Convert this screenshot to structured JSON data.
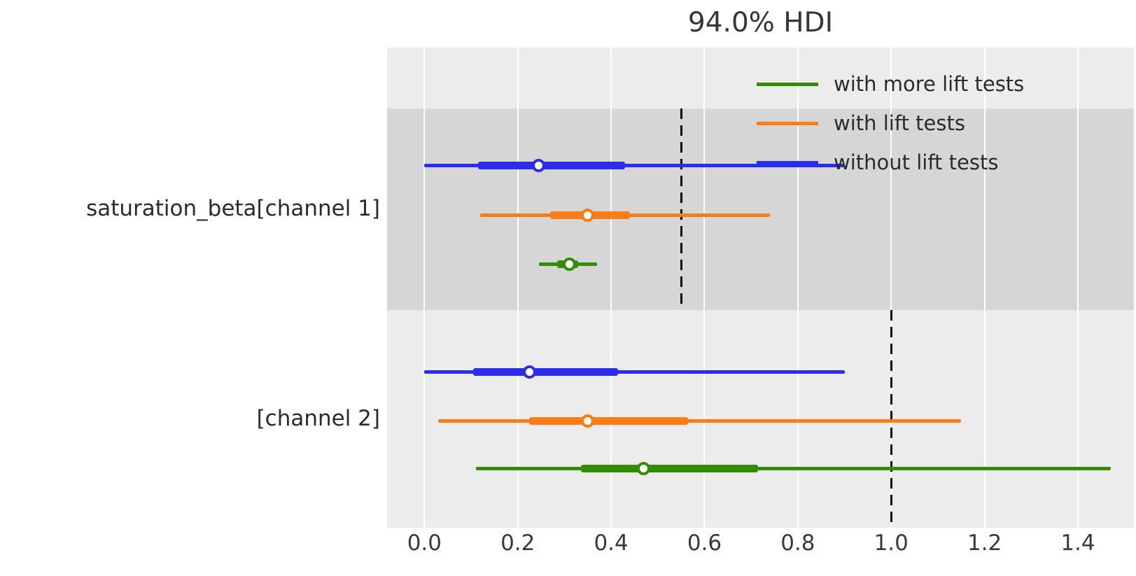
{
  "title": "94.0% HDI",
  "legend": [
    {
      "label": "with more lift tests",
      "color": "#328c06"
    },
    {
      "label": "with lift tests",
      "color": "#fa7c17"
    },
    {
      "label": "without lift tests",
      "color": "#2a2eec"
    }
  ],
  "colors": {
    "axes_background": "#ececec",
    "group_band": "#d6d6d6",
    "gridline": "#ffffff",
    "reference_line": "#0a0a0a",
    "text": "#2b2b2b",
    "blue": "#2a2eec",
    "orange": "#fa7c17",
    "green": "#328c06"
  },
  "chart_data": {
    "type": "forest",
    "title": "94.0% HDI",
    "xlim": [
      -0.08,
      1.52
    ],
    "xticks": [
      "0.0",
      "0.2",
      "0.4",
      "0.6",
      "0.8",
      "1.0",
      "1.2",
      "1.4"
    ],
    "xtick_values": [
      0.0,
      0.2,
      0.4,
      0.6,
      0.8,
      1.0,
      1.2,
      1.4
    ],
    "grid": "vertical white gridlines on gray background",
    "legend_position": "upper right, no frame",
    "groups": [
      {
        "label": "saturation_beta[channel 1]",
        "shaded_band": true,
        "reference_x": 0.55,
        "rows": [
          {
            "series": "without lift tests",
            "color": "#2a2eec",
            "hdi": [
              0.0,
              0.9
            ],
            "quartiles": [
              0.115,
              0.43
            ],
            "median": 0.245
          },
          {
            "series": "with lift tests",
            "color": "#fa7c17",
            "hdi": [
              0.12,
              0.74
            ],
            "quartiles": [
              0.27,
              0.44
            ],
            "median": 0.35
          },
          {
            "series": "with more lift tests",
            "color": "#328c06",
            "hdi": [
              0.245,
              0.37
            ],
            "quartiles": [
              0.285,
              0.33
            ],
            "median": 0.31
          }
        ]
      },
      {
        "label": "[channel 2]",
        "shaded_band": false,
        "reference_x": 1.0,
        "rows": [
          {
            "series": "without lift tests",
            "color": "#2a2eec",
            "hdi": [
              0.0,
              0.9
            ],
            "quartiles": [
              0.105,
              0.415
            ],
            "median": 0.225
          },
          {
            "series": "with lift tests",
            "color": "#fa7c17",
            "hdi": [
              0.03,
              1.15
            ],
            "quartiles": [
              0.225,
              0.565
            ],
            "median": 0.35
          },
          {
            "series": "with more lift tests",
            "color": "#328c06",
            "hdi": [
              0.11,
              1.47
            ],
            "quartiles": [
              0.335,
              0.715
            ],
            "median": 0.47
          }
        ]
      }
    ]
  }
}
